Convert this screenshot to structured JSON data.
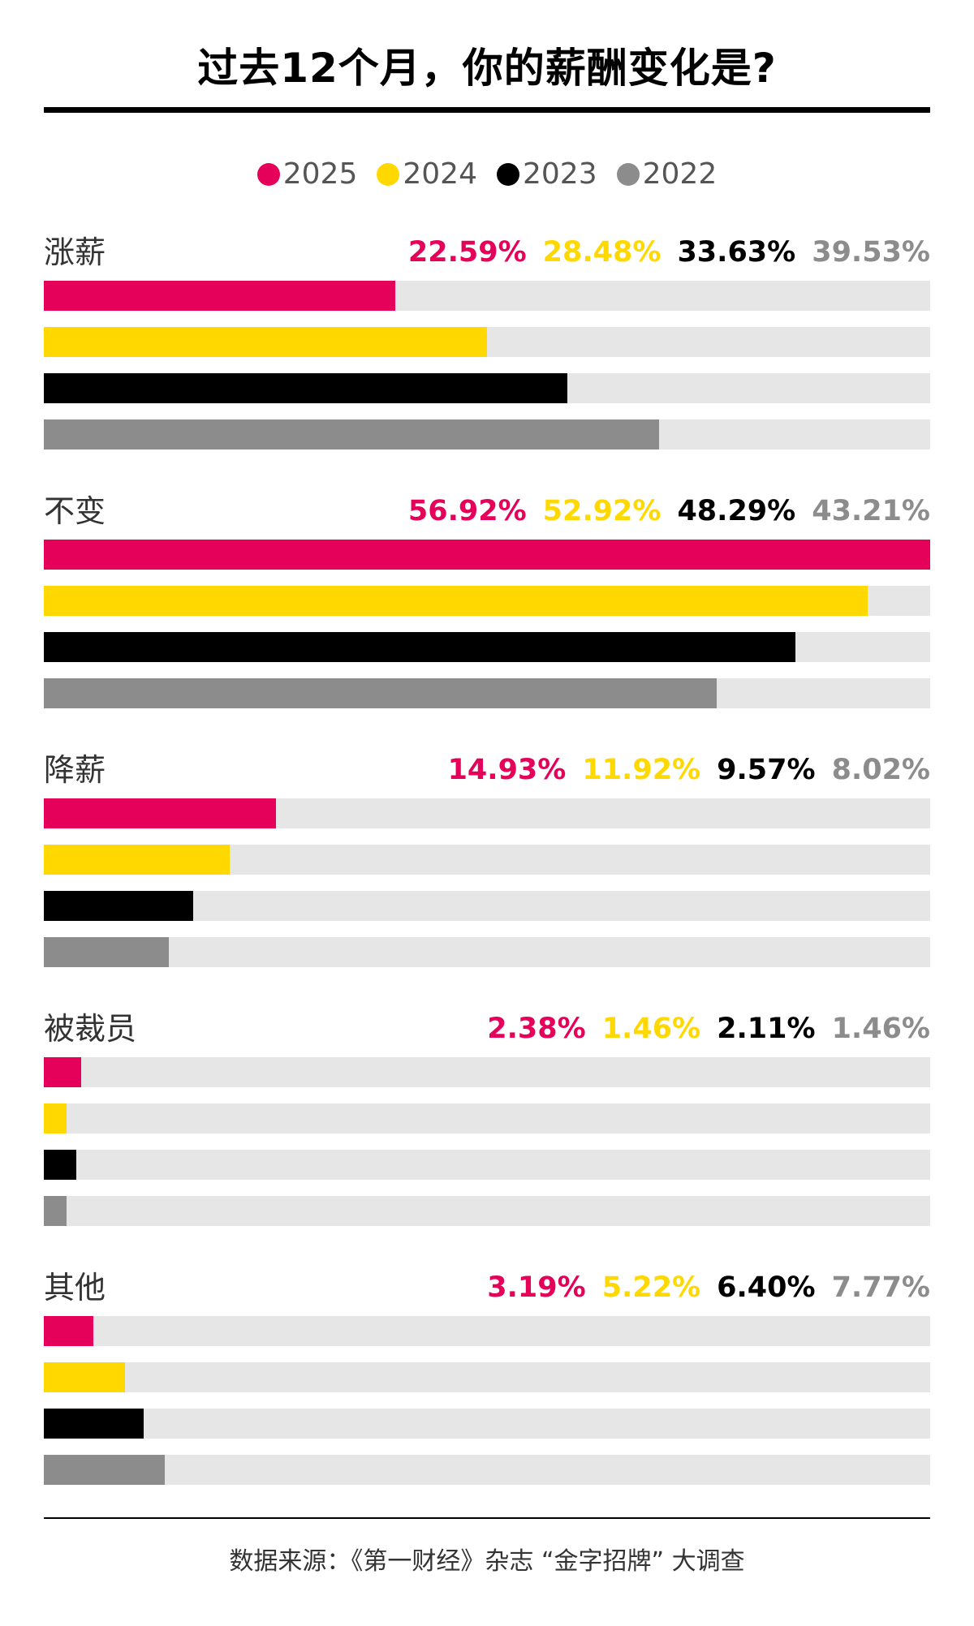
{
  "title": "过去12个月，你的薪酬变化是?",
  "source": "数据来源：《第一财经》杂志 “金字招牌” 大调查",
  "chart_data": {
    "type": "bar",
    "title": "过去12个月，你的薪酬变化是?",
    "categories": [
      "涨薪",
      "不变",
      "降薪",
      "被裁员",
      "其他"
    ],
    "series": [
      {
        "name": "2025",
        "color": "#e5005a",
        "values": [
          22.59,
          56.92,
          14.93,
          2.38,
          3.19
        ],
        "labels": [
          "22.59%",
          "56.92%",
          "14.93%",
          "2.38%",
          "3.19%"
        ]
      },
      {
        "name": "2024",
        "color": "#ffd800",
        "values": [
          28.48,
          52.92,
          11.92,
          1.46,
          5.22
        ],
        "labels": [
          "28.48%",
          "52.92%",
          "11.92%",
          "1.46%",
          "5.22%"
        ]
      },
      {
        "name": "2023",
        "color": "#000000",
        "values": [
          33.63,
          48.29,
          9.57,
          2.11,
          6.4
        ],
        "labels": [
          "33.63%",
          "48.29%",
          "9.57%",
          "2.11%",
          "6.40%"
        ]
      },
      {
        "name": "2022",
        "color": "#8c8c8c",
        "values": [
          39.53,
          43.21,
          8.02,
          1.46,
          7.77
        ],
        "labels": [
          "39.53%",
          "43.21%",
          "8.02%",
          "1.46%",
          "7.77%"
        ]
      }
    ],
    "xlim": [
      0,
      56.92
    ],
    "track_color": "#e6e6e6",
    "legend_position": "top-center"
  }
}
